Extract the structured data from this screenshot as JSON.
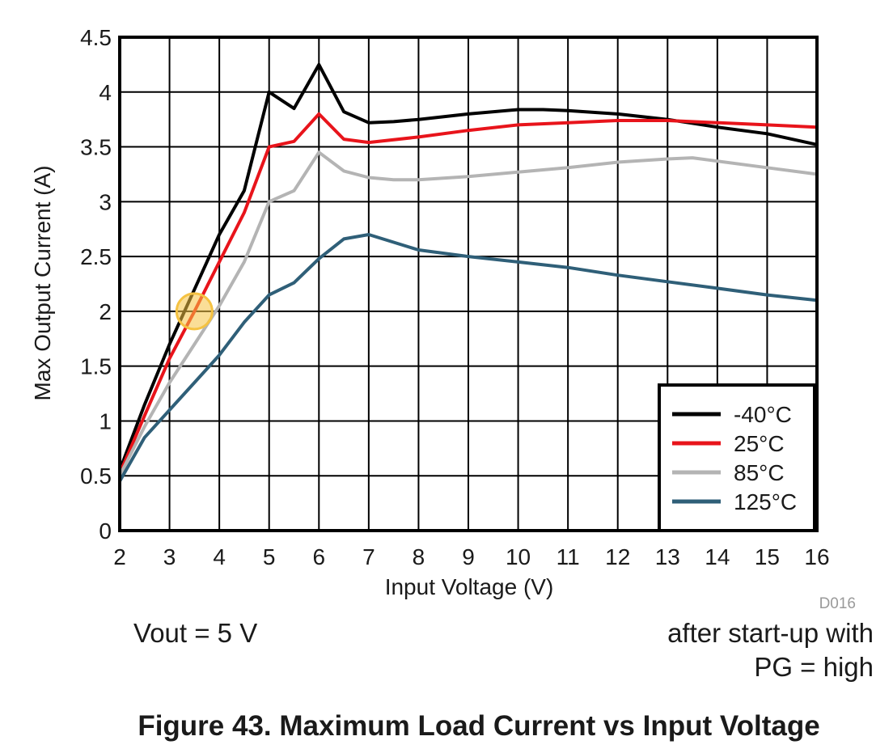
{
  "chart_data": {
    "type": "line",
    "title": "",
    "xlabel": "Input Voltage (V)",
    "ylabel": "Max Output Current (A)",
    "xlim": [
      2,
      16
    ],
    "ylim": [
      0,
      4.5
    ],
    "xticks": [
      "2",
      "3",
      "4",
      "5",
      "6",
      "7",
      "8",
      "9",
      "10",
      "11",
      "12",
      "13",
      "14",
      "15",
      "16"
    ],
    "yticks": [
      "0",
      "0.5",
      "1",
      "1.5",
      "2",
      "2.5",
      "3",
      "3.5",
      "4",
      "4.5"
    ],
    "grid": true,
    "legend_position": "bottom-right",
    "series": [
      {
        "name": "-40°C",
        "color": "#000000",
        "x": [
          2,
          2.5,
          3,
          3.5,
          4,
          4.5,
          5,
          5.5,
          6,
          6.5,
          7,
          7.5,
          8,
          9,
          10,
          10.5,
          11,
          12,
          13,
          14,
          15,
          16
        ],
        "y": [
          0.55,
          1.15,
          1.7,
          2.2,
          2.7,
          3.1,
          4.0,
          3.85,
          4.25,
          3.82,
          3.72,
          3.73,
          3.75,
          3.8,
          3.84,
          3.84,
          3.83,
          3.8,
          3.75,
          3.68,
          3.62,
          3.52
        ]
      },
      {
        "name": "25°C",
        "color": "#e8141b",
        "x": [
          2,
          2.5,
          3,
          3.5,
          4,
          4.5,
          5,
          5.5,
          6,
          6.5,
          7,
          8,
          9,
          10,
          11,
          12,
          13,
          14,
          15,
          16
        ],
        "y": [
          0.52,
          1.05,
          1.57,
          2.0,
          2.45,
          2.9,
          3.5,
          3.55,
          3.8,
          3.57,
          3.54,
          3.59,
          3.65,
          3.7,
          3.72,
          3.74,
          3.74,
          3.72,
          3.7,
          3.68
        ]
      },
      {
        "name": "85°C",
        "color": "#b4b4b4",
        "x": [
          2,
          2.5,
          3,
          3.5,
          4,
          4.5,
          5,
          5.5,
          6,
          6.5,
          7,
          7.5,
          8,
          9,
          10,
          11,
          12,
          13,
          13.5,
          14,
          15,
          16
        ],
        "y": [
          0.5,
          0.95,
          1.35,
          1.7,
          2.05,
          2.45,
          3.0,
          3.1,
          3.45,
          3.28,
          3.22,
          3.2,
          3.2,
          3.23,
          3.27,
          3.31,
          3.36,
          3.39,
          3.4,
          3.37,
          3.31,
          3.25
        ]
      },
      {
        "name": "125°C",
        "color": "#2f5f78",
        "x": [
          2,
          2.5,
          3,
          3.5,
          4,
          4.5,
          5,
          5.5,
          6,
          6.5,
          7,
          7.5,
          8,
          9,
          10,
          11,
          12,
          13,
          14,
          15,
          16
        ],
        "y": [
          0.45,
          0.85,
          1.1,
          1.35,
          1.6,
          1.9,
          2.15,
          2.26,
          2.48,
          2.66,
          2.7,
          2.63,
          2.56,
          2.5,
          2.45,
          2.4,
          2.33,
          2.27,
          2.21,
          2.15,
          2.1
        ]
      }
    ],
    "highlight": {
      "x": 3.5,
      "y": 2.0,
      "color": "#f5c242"
    }
  },
  "figure_id": "D016",
  "notes": {
    "left": "Vout = 5 V",
    "right_line1": "after start-up with",
    "right_line2": "PG = high"
  },
  "caption": "Figure 43. Maximum Load Current vs Input Voltage"
}
